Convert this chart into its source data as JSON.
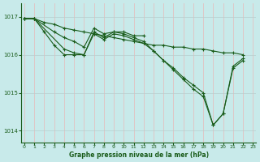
{
  "title": "Graphe pression niveau de la mer (hPa)",
  "bg_color": "#c8eaea",
  "grid_color": "#b8d8d8",
  "line_color": "#1a5c1a",
  "ylim": [
    1013.7,
    1017.35
  ],
  "xlim": [
    -0.3,
    23.3
  ],
  "yticks": [
    1014,
    1015,
    1016,
    1017
  ],
  "xticks": [
    0,
    1,
    2,
    3,
    4,
    5,
    6,
    7,
    8,
    9,
    10,
    11,
    12,
    13,
    14,
    15,
    16,
    17,
    18,
    19,
    20,
    21,
    22,
    23
  ],
  "series_flat": {
    "x": [
      0,
      1,
      2,
      3,
      4,
      5,
      6,
      7,
      8,
      9,
      10,
      11,
      12,
      13,
      14,
      15,
      16,
      17,
      18,
      19,
      20,
      21,
      22
    ],
    "y": [
      1016.95,
      1016.95,
      1016.85,
      1016.8,
      1016.7,
      1016.65,
      1016.6,
      1016.55,
      1016.5,
      1016.45,
      1016.4,
      1016.35,
      1016.3,
      1016.25,
      1016.25,
      1016.2,
      1016.2,
      1016.15,
      1016.15,
      1016.1,
      1016.05,
      1016.05,
      1016.0
    ]
  },
  "series_bump": {
    "x": [
      0,
      1,
      3,
      4,
      5,
      6,
      7,
      8,
      9,
      10,
      11,
      12
    ],
    "y": [
      1016.95,
      1016.95,
      1016.6,
      1016.45,
      1016.35,
      1016.2,
      1016.7,
      1016.55,
      1016.6,
      1016.6,
      1016.5,
      1016.5
    ]
  },
  "series_deep1": {
    "x": [
      0,
      1,
      2,
      3,
      4,
      5,
      6,
      7,
      8,
      9,
      10,
      11,
      12,
      13,
      14,
      15,
      16,
      17,
      18,
      19,
      20,
      21,
      22
    ],
    "y": [
      1016.95,
      1016.95,
      1016.6,
      1016.25,
      1016.0,
      1016.0,
      1016.0,
      1016.6,
      1016.45,
      1016.6,
      1016.55,
      1016.45,
      1016.35,
      1016.1,
      1015.85,
      1015.65,
      1015.4,
      1015.2,
      1015.0,
      1014.15,
      1014.45,
      1015.7,
      1015.9
    ]
  },
  "series_deep2": {
    "x": [
      0,
      1,
      4,
      5,
      6,
      7,
      8,
      9,
      10,
      11,
      12,
      13,
      14,
      15,
      16,
      17,
      18,
      19,
      20,
      21,
      22
    ],
    "y": [
      1016.95,
      1016.95,
      1016.15,
      1016.05,
      1016.0,
      1016.55,
      1016.4,
      1016.55,
      1016.5,
      1016.4,
      1016.3,
      1016.1,
      1015.85,
      1015.6,
      1015.35,
      1015.1,
      1014.9,
      1014.15,
      1014.45,
      1015.65,
      1015.85
    ]
  }
}
